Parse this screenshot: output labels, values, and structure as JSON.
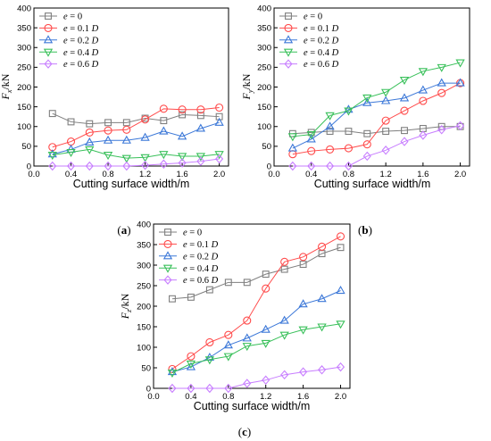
{
  "panels": [
    {
      "label": "(a)",
      "label_letter": "a",
      "ylabel_main": "F",
      "ylabel_sub": "x",
      "ylabel_unit": "/kN"
    },
    {
      "label": "(b)",
      "label_letter": "b",
      "ylabel_main": "F",
      "ylabel_sub": "y",
      "ylabel_unit": "/kN"
    },
    {
      "label": "(c)",
      "label_letter": "c",
      "ylabel_main": "F",
      "ylabel_sub": "z",
      "ylabel_unit": "/kN"
    }
  ],
  "legend_entries": [
    {
      "name": "e = 0",
      "var": "e",
      "rest": " = 0"
    },
    {
      "name": "e = 0.1 D",
      "var": "e",
      "rest": " = 0.1 ",
      "d": "D"
    },
    {
      "name": "e = 0.2 D",
      "var": "e",
      "rest": " = 0.2 ",
      "d": "D"
    },
    {
      "name": "e = 0.4 D",
      "var": "e",
      "rest": " = 0.4 ",
      "d": "D"
    },
    {
      "name": "e = 0.6 D",
      "var": "e",
      "rest": " = 0.6 ",
      "d": "D"
    }
  ],
  "series_style": [
    {
      "color": "#7f7f7f",
      "marker": "square"
    },
    {
      "color": "#ff4b4b",
      "marker": "circle"
    },
    {
      "color": "#3c78d8",
      "marker": "triangle-up"
    },
    {
      "color": "#39c05a",
      "marker": "triangle-down"
    },
    {
      "color": "#c77dff",
      "marker": "diamond"
    }
  ],
  "xlabel": "Cutting surface width/m",
  "chart_data": [
    {
      "type": "line",
      "title": "",
      "xlabel": "Cutting surface width/m",
      "ylabel": "Fx/kN",
      "xlim": [
        0.0,
        2.1
      ],
      "ylim": [
        0,
        400
      ],
      "xticks": [
        "0.0",
        "0.4",
        "0.8",
        "1.2",
        "1.6",
        "2.0"
      ],
      "yticks": [
        "0",
        "50",
        "100",
        "150",
        "200",
        "250",
        "300",
        "350",
        "400"
      ],
      "legend_position": "top-left",
      "grid": false,
      "x": [
        0.2,
        0.4,
        0.6,
        0.8,
        1.0,
        1.2,
        1.4,
        1.6,
        1.8,
        2.0
      ],
      "series": [
        {
          "name": "e = 0",
          "values": [
            133,
            112,
            107,
            110,
            110,
            121,
            115,
            130,
            128,
            125
          ]
        },
        {
          "name": "e = 0.1 D",
          "values": [
            48,
            62,
            85,
            90,
            92,
            118,
            145,
            143,
            143,
            148
          ]
        },
        {
          "name": "e = 0.2 D",
          "values": [
            30,
            42,
            60,
            65,
            65,
            72,
            88,
            75,
            95,
            110
          ]
        },
        {
          "name": "e = 0.4 D",
          "values": [
            28,
            35,
            42,
            28,
            20,
            22,
            30,
            25,
            25,
            30
          ]
        },
        {
          "name": "e = 0.6 D",
          "values": [
            0,
            0,
            0,
            0,
            0,
            2,
            5,
            8,
            12,
            18
          ]
        }
      ]
    },
    {
      "type": "line",
      "title": "",
      "xlabel": "Cutting surface width/m",
      "ylabel": "Fy/kN",
      "xlim": [
        0.0,
        2.1
      ],
      "ylim": [
        0,
        400
      ],
      "xticks": [
        "0.0",
        "0.4",
        "0.8",
        "1.2",
        "1.6",
        "2.0"
      ],
      "yticks": [
        "0",
        "50",
        "100",
        "150",
        "200",
        "250",
        "300",
        "350",
        "400"
      ],
      "legend_position": "top-left",
      "grid": false,
      "x": [
        0.2,
        0.4,
        0.6,
        0.8,
        1.0,
        1.2,
        1.4,
        1.6,
        1.8,
        2.0
      ],
      "series": [
        {
          "name": "e = 0",
          "values": [
            82,
            85,
            88,
            88,
            82,
            88,
            90,
            95,
            100,
            100
          ]
        },
        {
          "name": "e = 0.1 D",
          "values": [
            30,
            38,
            42,
            45,
            55,
            115,
            140,
            165,
            185,
            210
          ]
        },
        {
          "name": "e = 0.2 D",
          "values": [
            45,
            68,
            100,
            143,
            160,
            165,
            172,
            192,
            210,
            210
          ]
        },
        {
          "name": "e = 0.4 D",
          "values": [
            75,
            80,
            128,
            140,
            173,
            187,
            218,
            240,
            250,
            262
          ]
        },
        {
          "name": "e = 0.6 D",
          "values": [
            0,
            0,
            0,
            0,
            25,
            40,
            62,
            78,
            92,
            102
          ]
        }
      ]
    },
    {
      "type": "line",
      "title": "",
      "xlabel": "Cutting surface width/m",
      "ylabel": "Fz/kN",
      "xlim": [
        0.0,
        2.1
      ],
      "ylim": [
        0,
        400
      ],
      "xticks": [
        "0.0",
        "0.4",
        "0.8",
        "1.2",
        "1.6",
        "2.0"
      ],
      "yticks": [
        "0",
        "50",
        "100",
        "150",
        "200",
        "250",
        "300",
        "350",
        "400"
      ],
      "legend_position": "top-left",
      "grid": false,
      "x": [
        0.2,
        0.4,
        0.6,
        0.8,
        1.0,
        1.2,
        1.4,
        1.6,
        1.8,
        2.0
      ],
      "series": [
        {
          "name": "e = 0",
          "values": [
            218,
            222,
            240,
            258,
            258,
            278,
            290,
            302,
            328,
            343
          ]
        },
        {
          "name": "e = 0.1 D",
          "values": [
            47,
            78,
            112,
            130,
            165,
            243,
            308,
            320,
            345,
            370
          ]
        },
        {
          "name": "e = 0.2 D",
          "values": [
            40,
            52,
            75,
            105,
            122,
            143,
            165,
            205,
            218,
            238
          ]
        },
        {
          "name": "e = 0.4 D",
          "values": [
            38,
            60,
            70,
            78,
            103,
            110,
            130,
            143,
            150,
            157
          ]
        },
        {
          "name": "e = 0.6 D",
          "values": [
            0,
            0,
            0,
            0,
            12,
            20,
            33,
            40,
            45,
            52
          ]
        }
      ]
    }
  ]
}
